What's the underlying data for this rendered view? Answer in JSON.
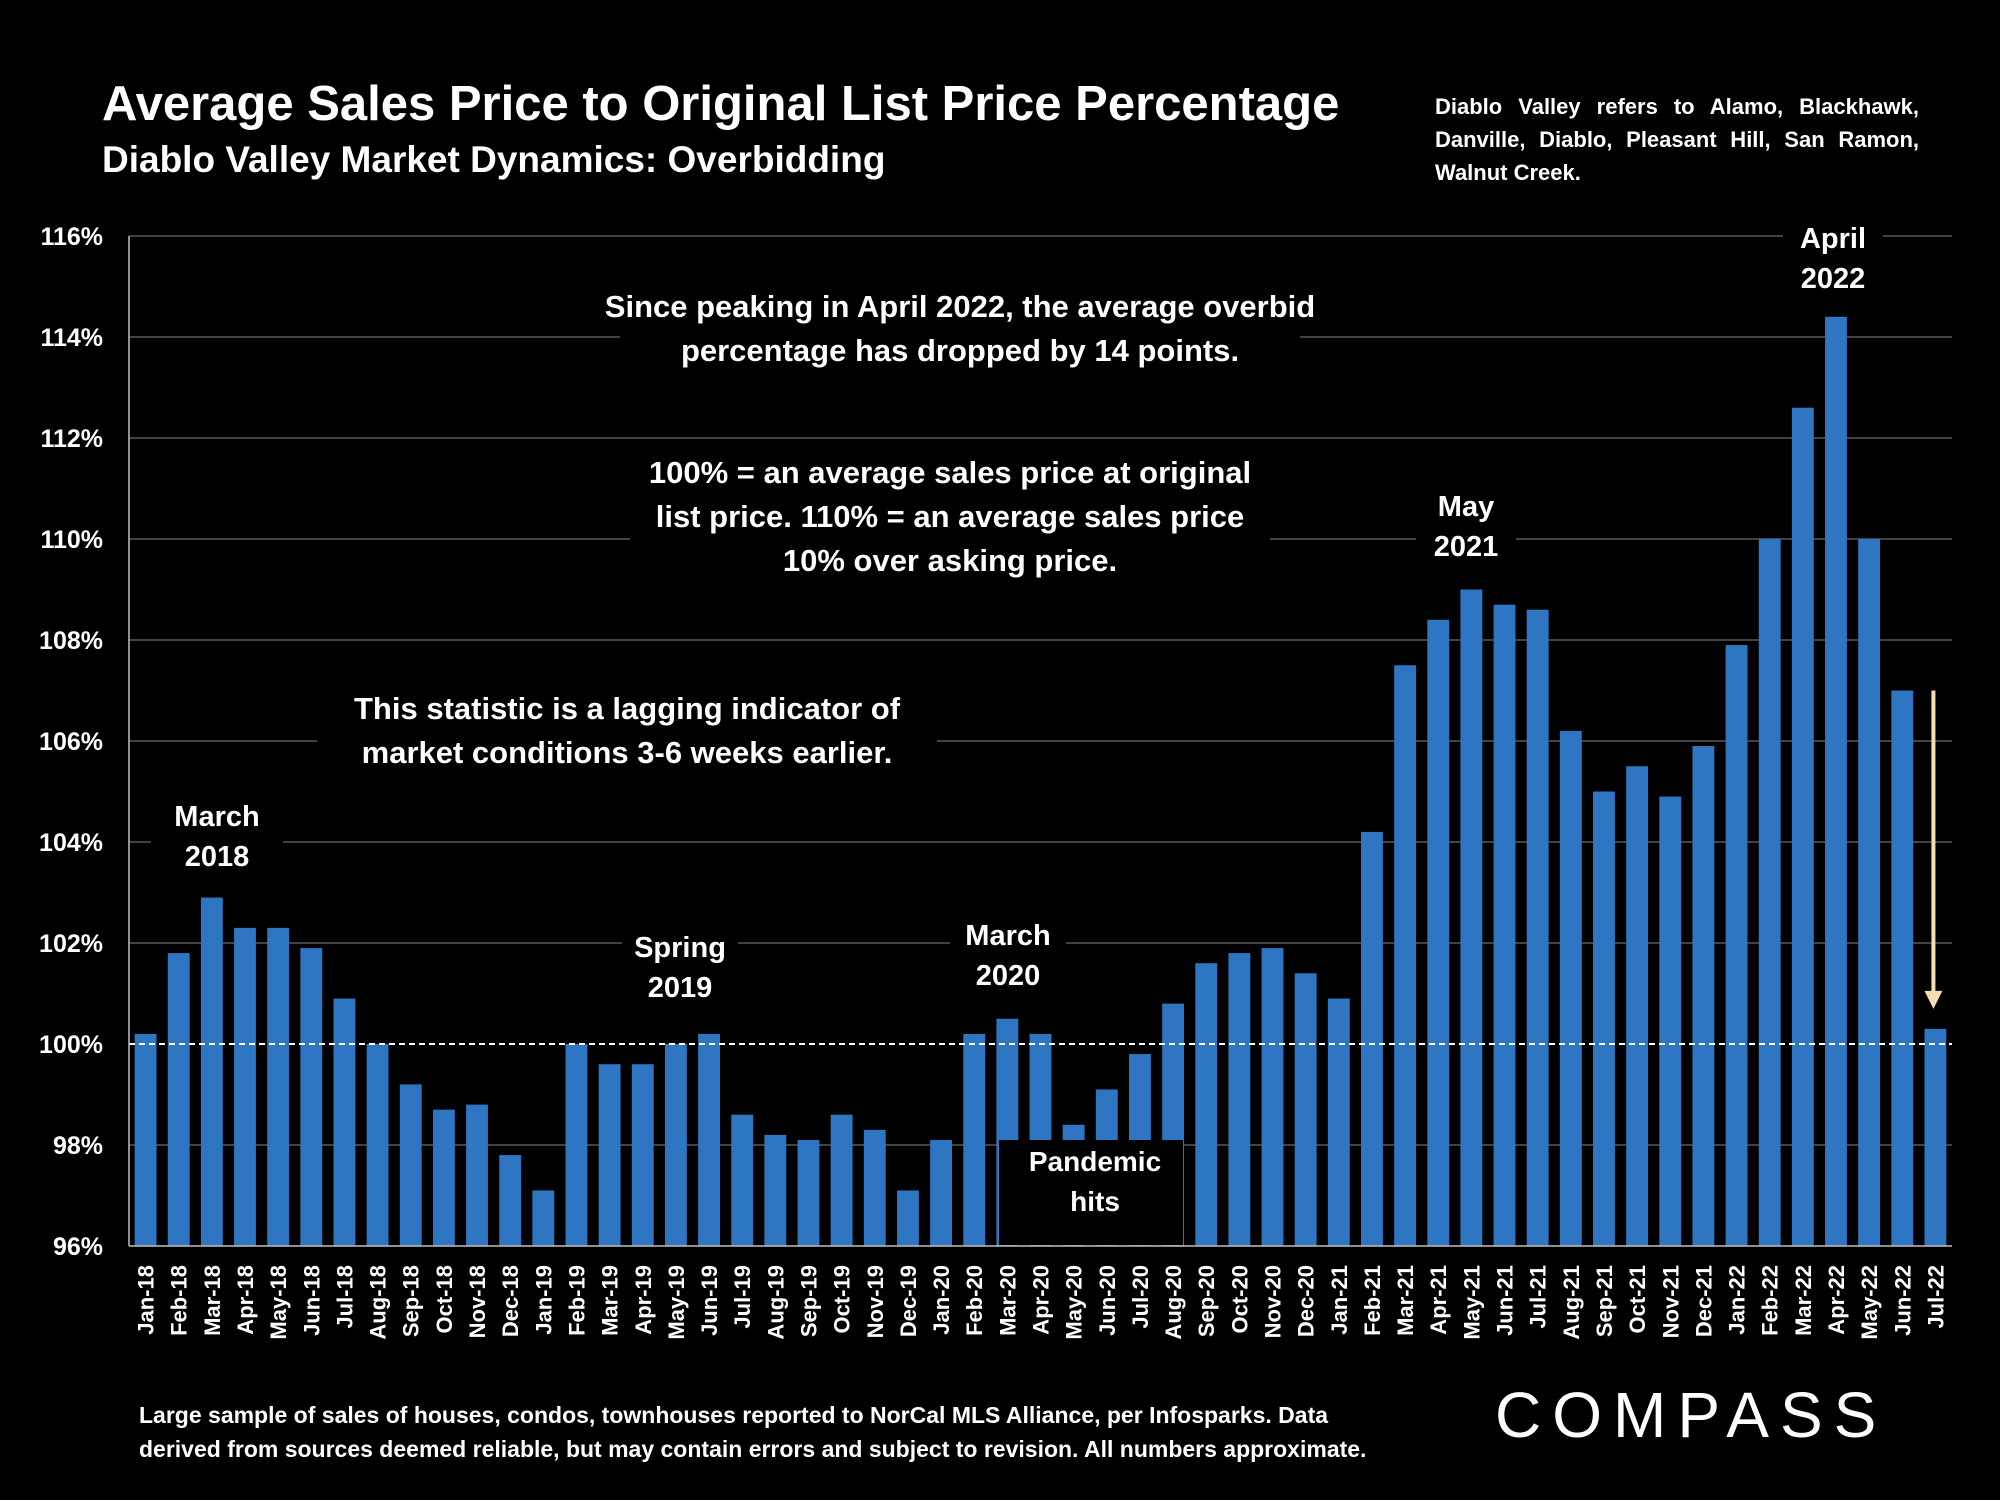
{
  "header": {
    "title": "Average Sales Price to Original List Price Percentage",
    "subtitle": "Diablo Valley Market Dynamics: Overbidding",
    "note": "Diablo Valley refers to Alamo, Blackhawk, Danville, Diablo, Pleasant Hill, San Ramon, Walnut Creek."
  },
  "footer": {
    "line1": "Large sample of sales of houses, condos, townhouses reported to NorCal MLS Alliance, per Infosparks. Data",
    "line2": "derived from sources deemed reliable, but may contain errors and subject to revision. All numbers approximate.",
    "logo": "COMPASS"
  },
  "colors": {
    "background": "#000000",
    "bar": "#2e75c2",
    "gridline": "#595959",
    "reference_line": "#ffffff",
    "arrow": "#f5deb3"
  },
  "chart_data": {
    "type": "bar",
    "title": "Average Sales Price to Original List Price Percentage",
    "xlabel": "",
    "ylabel": "",
    "ylim": [
      96,
      116
    ],
    "yticks": [
      96,
      98,
      100,
      102,
      104,
      106,
      108,
      110,
      112,
      114,
      116
    ],
    "ytick_labels": [
      "96%",
      "98%",
      "100%",
      "102%",
      "104%",
      "106%",
      "108%",
      "110%",
      "112%",
      "114%",
      "116%"
    ],
    "grid": true,
    "reference_line_value": 100,
    "categories": [
      "Jan-18",
      "Feb-18",
      "Mar-18",
      "Apr-18",
      "May-18",
      "Jun-18",
      "Jul-18",
      "Aug-18",
      "Sep-18",
      "Oct-18",
      "Nov-18",
      "Dec-18",
      "Jan-19",
      "Feb-19",
      "Mar-19",
      "Apr-19",
      "May-19",
      "Jun-19",
      "Jul-19",
      "Aug-19",
      "Sep-19",
      "Oct-19",
      "Nov-19",
      "Dec-19",
      "Jan-20",
      "Feb-20",
      "Mar-20",
      "Apr-20",
      "May-20",
      "Jun-20",
      "Jul-20",
      "Aug-20",
      "Sep-20",
      "Oct-20",
      "Nov-20",
      "Dec-20",
      "Jan-21",
      "Feb-21",
      "Mar-21",
      "Apr-21",
      "May-21",
      "Jun-21",
      "Jul-21",
      "Aug-21",
      "Sep-21",
      "Oct-21",
      "Nov-21",
      "Dec-21",
      "Jan-22",
      "Feb-22",
      "Mar-22",
      "Apr-22",
      "May-22",
      "Jun-22",
      "Jul-22"
    ],
    "values": [
      100.2,
      101.8,
      102.9,
      102.3,
      102.3,
      101.9,
      100.9,
      100.0,
      99.2,
      98.7,
      98.8,
      97.8,
      97.1,
      100.0,
      99.6,
      99.6,
      100.0,
      100.2,
      98.6,
      98.2,
      98.1,
      98.6,
      98.3,
      97.1,
      98.1,
      100.2,
      100.5,
      100.2,
      98.4,
      99.1,
      99.8,
      100.8,
      101.6,
      101.8,
      101.9,
      101.4,
      100.9,
      104.2,
      107.5,
      108.4,
      109.0,
      108.7,
      108.6,
      106.2,
      105.0,
      105.5,
      104.9,
      105.9,
      107.9,
      110.0,
      112.6,
      114.4,
      110.0,
      107.0,
      100.3
    ],
    "annotations": [
      {
        "id": "march-2018",
        "lines": [
          "March",
          "2018"
        ],
        "category": "Mar-18",
        "kind": "label"
      },
      {
        "id": "spring-2019",
        "lines": [
          "Spring",
          "2019"
        ],
        "category": "May-19",
        "kind": "label"
      },
      {
        "id": "march-2020",
        "lines": [
          "March",
          "2020"
        ],
        "category": "Mar-20",
        "kind": "label"
      },
      {
        "id": "may-2021",
        "lines": [
          "May",
          "2021"
        ],
        "category": "May-21",
        "kind": "label"
      },
      {
        "id": "april-2022",
        "lines": [
          "April",
          "2022"
        ],
        "category": "Apr-22",
        "kind": "label"
      },
      {
        "id": "pandemic-hits",
        "lines": [
          "Pandemic",
          "hits"
        ],
        "category": "Apr-20",
        "kind": "box"
      },
      {
        "id": "peak-note",
        "lines": [
          "Since peaking in April 2022, the average overbid",
          "percentage has dropped by 14 points."
        ],
        "kind": "text"
      },
      {
        "id": "definition-note",
        "lines": [
          "100% = an average sales price at original",
          "list price. 110% = an average sales price",
          "10% over asking price."
        ],
        "kind": "text"
      },
      {
        "id": "lagging-note",
        "lines": [
          "This statistic is a lagging indicator of",
          "market conditions 3-6 weeks earlier."
        ],
        "kind": "text"
      }
    ],
    "trend_arrow": {
      "from": 107.0,
      "to": 100.3,
      "category": "Jul-22"
    }
  }
}
